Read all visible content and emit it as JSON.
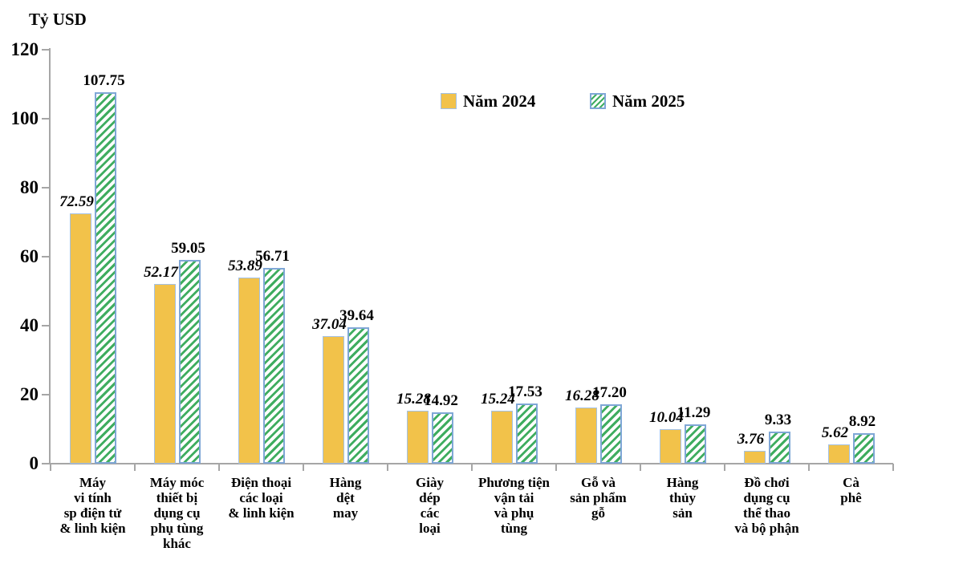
{
  "title": "Tỷ USD",
  "legend": {
    "items": [
      {
        "label": "Năm 2024",
        "swatch": "solid-yellow"
      },
      {
        "label": "Năm 2025",
        "swatch": "green-diagonal-hatch"
      }
    ]
  },
  "colors": {
    "bar_2024_fill": "#f2c24a",
    "bar_2024_border": "#a3c1e5",
    "bar_2025_hatch_green": "#3fad60",
    "bar_2025_border": "#7fa7d6",
    "axis": "#a6a6a6",
    "text": "#000000",
    "background": "#ffffff"
  },
  "chart_data": {
    "type": "bar",
    "title": "Tỷ USD",
    "ylabel": "Tỷ USD",
    "xlabel": "",
    "ylim": [
      0,
      120
    ],
    "yticks": [
      0,
      20,
      40,
      60,
      80,
      100,
      120
    ],
    "grid": false,
    "legend_position": "top-center",
    "value_label_decimals": 2,
    "categories": [
      "Máy\nvi tính\nsp điện tử\n& linh kiện",
      "Máy móc\nthiết bị\ndụng cụ\nphụ tùng\nkhác",
      "Điện thoại\ncác loại\n& linh kiện",
      "Hàng\ndệt\nmay",
      "Giày\ndép\ncác\nloại",
      "Phương tiện\nvận tải\nvà phụ\ntùng",
      "Gỗ và\nsản phẩm\ngỗ",
      "Hàng\nthủy\nsản",
      "Đồ chơi\ndụng cụ\nthể thao\nvà bộ phận",
      "Cà\nphê"
    ],
    "series": [
      {
        "name": "Năm 2024",
        "style": "solid",
        "label_style": "bold-italic",
        "values": [
          72.59,
          52.17,
          53.89,
          37.04,
          15.28,
          15.24,
          16.28,
          10.04,
          3.76,
          5.62
        ]
      },
      {
        "name": "Năm 2025",
        "style": "hatch",
        "label_style": "bold",
        "values": [
          107.75,
          59.05,
          56.71,
          39.64,
          14.92,
          17.53,
          17.2,
          11.29,
          9.33,
          8.92
        ]
      }
    ]
  }
}
